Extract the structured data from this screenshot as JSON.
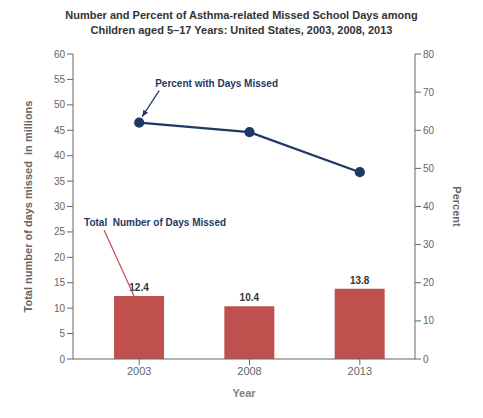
{
  "chart_data": {
    "type": "bar",
    "title": "Number and Percent of Asthma-related Missed School Days among\nChildren aged 5–17 Years: United States, 2003, 2008, 2013",
    "x": [
      2003,
      2008,
      2013
    ],
    "xlim": [
      2000.0,
      2015.5
    ],
    "xticks": [
      2003,
      2008,
      2013
    ],
    "xlabel": "Year",
    "ylabel": "Total number of days missed  in millions",
    "ylim": [
      0,
      60
    ],
    "yticks": [
      0,
      5,
      10,
      15,
      20,
      25,
      30,
      35,
      40,
      45,
      50,
      55,
      60
    ],
    "y2label": "Percent",
    "y2lim": [
      0,
      80
    ],
    "y2ticks": [
      0,
      10,
      20,
      30,
      40,
      50,
      60,
      70,
      80
    ],
    "grid": false,
    "series": [
      {
        "name": "Total  Number of Days Missed",
        "type": "bar",
        "color": "#c0504d",
        "values": [
          12.4,
          10.4,
          13.8
        ],
        "data_labels": true
      },
      {
        "name": "Percent with Days Missed",
        "type": "line",
        "axis": "y2",
        "color": "#1f3864",
        "marker": "circle",
        "values": [
          62.0,
          59.5,
          49.0
        ]
      }
    ]
  }
}
